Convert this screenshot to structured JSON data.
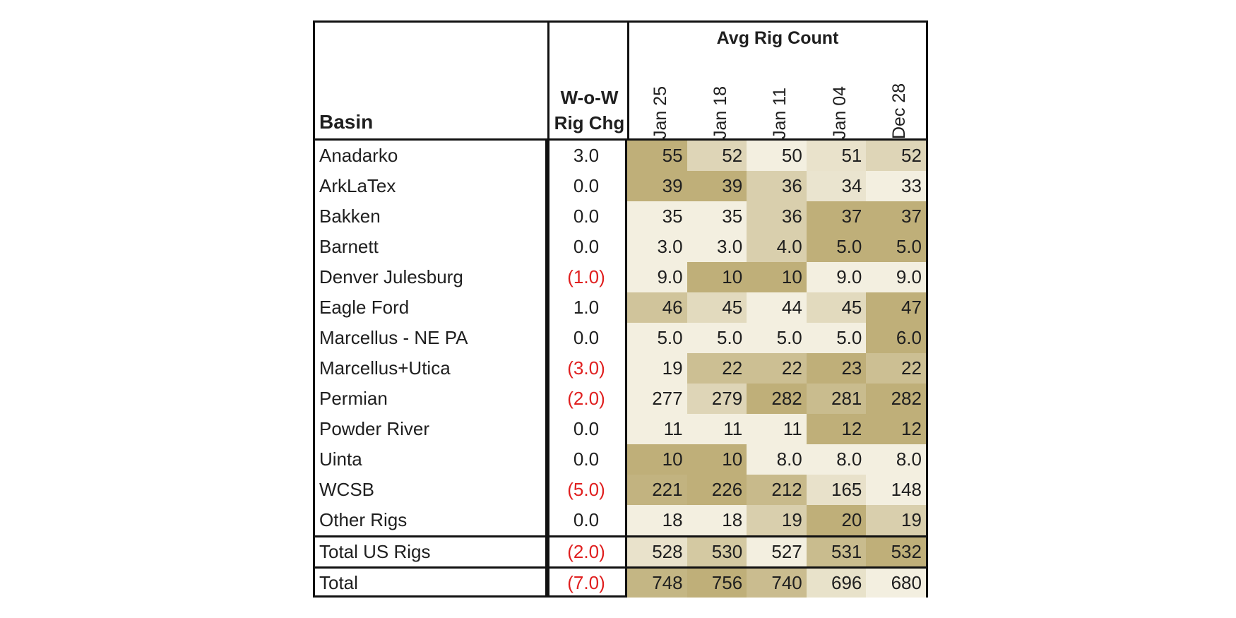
{
  "table": {
    "header": {
      "basin": "Basin",
      "wow_line1": "W-o-W",
      "wow_line2": "Rig Chg",
      "avg_rig_count": "Avg Rig Count",
      "dates": [
        "Jan 25",
        "Jan 18",
        "Jan 11",
        "Jan 04",
        "Dec 28"
      ]
    },
    "rows": [
      {
        "basin": "Anadarko",
        "chg": "3.0",
        "neg": false,
        "vals": [
          "55",
          "52",
          "50",
          "51",
          "52"
        ]
      },
      {
        "basin": "ArkLaTex",
        "chg": "0.0",
        "neg": false,
        "vals": [
          "39",
          "39",
          "36",
          "34",
          "33"
        ]
      },
      {
        "basin": "Bakken",
        "chg": "0.0",
        "neg": false,
        "vals": [
          "35",
          "35",
          "36",
          "37",
          "37"
        ]
      },
      {
        "basin": "Barnett",
        "chg": "0.0",
        "neg": false,
        "vals": [
          "3.0",
          "3.0",
          "4.0",
          "5.0",
          "5.0"
        ]
      },
      {
        "basin": "Denver Julesburg",
        "chg": "(1.0)",
        "neg": true,
        "vals": [
          "9.0",
          "10",
          "10",
          "9.0",
          "9.0"
        ]
      },
      {
        "basin": "Eagle Ford",
        "chg": "1.0",
        "neg": false,
        "vals": [
          "46",
          "45",
          "44",
          "45",
          "47"
        ]
      },
      {
        "basin": "Marcellus - NE PA",
        "chg": "0.0",
        "neg": false,
        "vals": [
          "5.0",
          "5.0",
          "5.0",
          "5.0",
          "6.0"
        ]
      },
      {
        "basin": "Marcellus+Utica",
        "chg": "(3.0)",
        "neg": true,
        "vals": [
          "19",
          "22",
          "22",
          "23",
          "22"
        ]
      },
      {
        "basin": "Permian",
        "chg": "(2.0)",
        "neg": true,
        "vals": [
          "277",
          "279",
          "282",
          "281",
          "282"
        ]
      },
      {
        "basin": "Powder River",
        "chg": "0.0",
        "neg": false,
        "vals": [
          "11",
          "11",
          "11",
          "12",
          "12"
        ]
      },
      {
        "basin": "Uinta",
        "chg": "0.0",
        "neg": false,
        "vals": [
          "10",
          "10",
          "8.0",
          "8.0",
          "8.0"
        ]
      },
      {
        "basin": "WCSB",
        "chg": "(5.0)",
        "neg": true,
        "vals": [
          "221",
          "226",
          "212",
          "165",
          "148"
        ]
      },
      {
        "basin": "Other Rigs",
        "chg": "0.0",
        "neg": false,
        "vals": [
          "18",
          "18",
          "19",
          "20",
          "19"
        ]
      },
      {
        "basin": "Total US Rigs",
        "chg": "(2.0)",
        "neg": true,
        "vals": [
          "528",
          "530",
          "527",
          "531",
          "532"
        ]
      },
      {
        "basin": "Total",
        "chg": "(7.0)",
        "neg": true,
        "vals": [
          "748",
          "756",
          "740",
          "696",
          "680"
        ]
      }
    ]
  },
  "colors": {
    "heat_low": "#f3efe0",
    "heat_high": "#bfaf79",
    "negative_text": "#e02020",
    "border": "#111111"
  }
}
